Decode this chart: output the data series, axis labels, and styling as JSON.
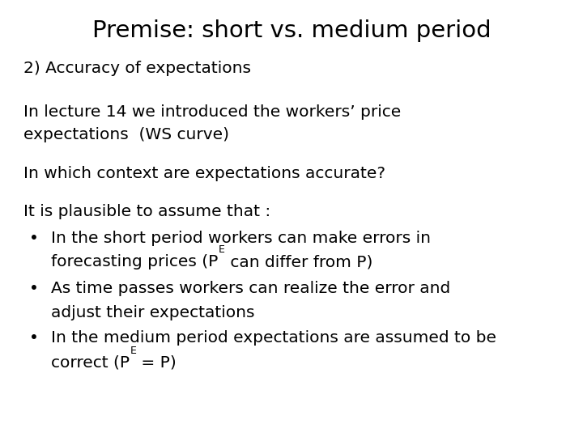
{
  "title": "Premise: short vs. medium period",
  "background_color": "#ffffff",
  "text_color": "#000000",
  "title_fontsize": 21,
  "body_fontsize": 14.5,
  "font_family": "DejaVu Sans",
  "section_heading": "2) Accuracy of expectations",
  "paragraph1_line1": "In lecture 14 we introduced the workers’ price",
  "paragraph1_line2": "expectations  (WS curve)",
  "paragraph2": "In which context are expectations accurate?",
  "intro_bullet": "It is plausible to assume that :",
  "bullet_char": "•",
  "bullets": [
    {
      "line1": "In the short period workers can make errors in",
      "line2_parts": [
        "forecasting prices (P",
        "E",
        " can differ from P)"
      ]
    },
    {
      "line1": "As time passes workers can realize the error and",
      "line2": "adjust their expectations"
    },
    {
      "line1": "In the medium period expectations are assumed to be",
      "line2_parts": [
        "correct (P",
        "E",
        " = P)"
      ]
    }
  ]
}
